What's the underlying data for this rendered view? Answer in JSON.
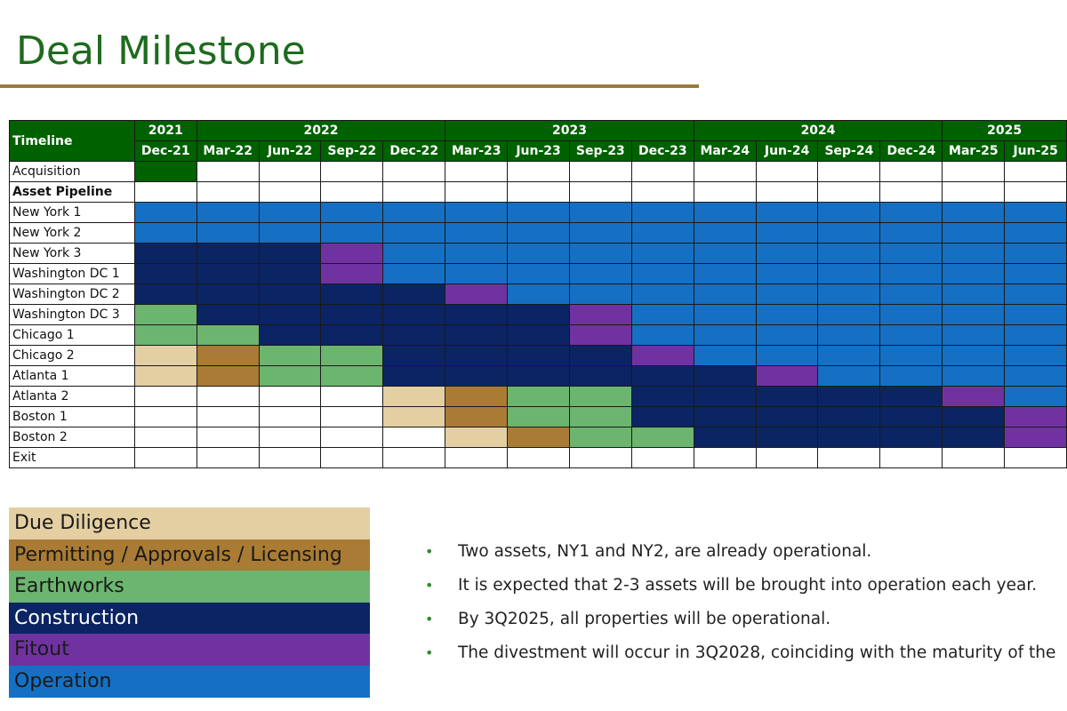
{
  "title": "Deal Milestone",
  "gantt": {
    "label_header": "Timeline",
    "years": [
      {
        "label": "2021",
        "span": 1
      },
      {
        "label": "2022",
        "span": 4
      },
      {
        "label": "2023",
        "span": 4
      },
      {
        "label": "2024",
        "span": 4
      },
      {
        "label": "2025",
        "span": 2
      }
    ],
    "periods": [
      "Dec-21",
      "Mar-22",
      "Jun-22",
      "Sep-22",
      "Dec-22",
      "Mar-23",
      "Jun-23",
      "Sep-23",
      "Dec-23",
      "Mar-24",
      "Jun-24",
      "Sep-24",
      "Dec-24",
      "Mar-25",
      "Jun-25"
    ],
    "phase_colors": {
      "A": "#006100",
      "D": "#e4cfa3",
      "P": "#a97b35",
      "E": "#6cb56f",
      "C": "#0b2463",
      "F": "#7032a0",
      "O": "#1570c4",
      "": "#ffffff"
    },
    "rows": [
      {
        "label": "Acquisition",
        "bold": false,
        "cells": [
          "A",
          "",
          "",
          "",
          "",
          "",
          "",
          "",
          "",
          "",
          "",
          "",
          "",
          "",
          ""
        ]
      },
      {
        "label": "Asset Pipeline",
        "bold": true,
        "cells": [
          "",
          "",
          "",
          "",
          "",
          "",
          "",
          "",
          "",
          "",
          "",
          "",
          "",
          "",
          ""
        ]
      },
      {
        "label": "New York 1",
        "bold": false,
        "cells": [
          "O",
          "O",
          "O",
          "O",
          "O",
          "O",
          "O",
          "O",
          "O",
          "O",
          "O",
          "O",
          "O",
          "O",
          "O"
        ]
      },
      {
        "label": "New York 2",
        "bold": false,
        "cells": [
          "O",
          "O",
          "O",
          "O",
          "O",
          "O",
          "O",
          "O",
          "O",
          "O",
          "O",
          "O",
          "O",
          "O",
          "O"
        ]
      },
      {
        "label": "New York 3",
        "bold": false,
        "cells": [
          "C",
          "C",
          "C",
          "F",
          "O",
          "O",
          "O",
          "O",
          "O",
          "O",
          "O",
          "O",
          "O",
          "O",
          "O"
        ]
      },
      {
        "label": "Washington DC 1",
        "bold": false,
        "cells": [
          "C",
          "C",
          "C",
          "F",
          "O",
          "O",
          "O",
          "O",
          "O",
          "O",
          "O",
          "O",
          "O",
          "O",
          "O"
        ]
      },
      {
        "label": "Washington DC 2",
        "bold": false,
        "cells": [
          "C",
          "C",
          "C",
          "C",
          "C",
          "F",
          "O",
          "O",
          "O",
          "O",
          "O",
          "O",
          "O",
          "O",
          "O"
        ]
      },
      {
        "label": "Washington DC 3",
        "bold": false,
        "cells": [
          "E",
          "C",
          "C",
          "C",
          "C",
          "C",
          "C",
          "F",
          "O",
          "O",
          "O",
          "O",
          "O",
          "O",
          "O"
        ]
      },
      {
        "label": "Chicago 1",
        "bold": false,
        "cells": [
          "E",
          "E",
          "C",
          "C",
          "C",
          "C",
          "C",
          "F",
          "O",
          "O",
          "O",
          "O",
          "O",
          "O",
          "O"
        ]
      },
      {
        "label": "Chicago 2",
        "bold": false,
        "cells": [
          "D",
          "P",
          "E",
          "E",
          "C",
          "C",
          "C",
          "C",
          "F",
          "O",
          "O",
          "O",
          "O",
          "O",
          "O"
        ]
      },
      {
        "label": "Atlanta 1",
        "bold": false,
        "cells": [
          "D",
          "P",
          "E",
          "E",
          "C",
          "C",
          "C",
          "C",
          "C",
          "C",
          "F",
          "O",
          "O",
          "O",
          "O"
        ]
      },
      {
        "label": "Atlanta 2",
        "bold": false,
        "cells": [
          "",
          "",
          "",
          "",
          "D",
          "P",
          "E",
          "E",
          "C",
          "C",
          "C",
          "C",
          "C",
          "F",
          "O"
        ]
      },
      {
        "label": "Boston 1",
        "bold": false,
        "cells": [
          "",
          "",
          "",
          "",
          "D",
          "P",
          "E",
          "E",
          "C",
          "C",
          "C",
          "C",
          "C",
          "C",
          "F"
        ]
      },
      {
        "label": "Boston 2",
        "bold": false,
        "cells": [
          "",
          "",
          "",
          "",
          "",
          "D",
          "P",
          "E",
          "E",
          "C",
          "C",
          "C",
          "C",
          "C",
          "F"
        ]
      },
      {
        "label": "Exit",
        "bold": false,
        "cells": [
          "",
          "",
          "",
          "",
          "",
          "",
          "",
          "",
          "",
          "",
          "",
          "",
          "",
          "",
          ""
        ]
      }
    ]
  },
  "legend": [
    {
      "label": "Due Diligence",
      "bg": "#e4cfa3",
      "fg": "#1a1a1a"
    },
    {
      "label": "Permitting / Approvals / Licensing",
      "bg": "#a97b35",
      "fg": "#1a1a1a"
    },
    {
      "label": "Earthworks",
      "bg": "#6cb56f",
      "fg": "#1a1a1a"
    },
    {
      "label": "Construction",
      "bg": "#0b2463",
      "fg": "#ffffff"
    },
    {
      "label": "Fitout",
      "bg": "#7032a0",
      "fg": "#1a1a1a"
    },
    {
      "label": "Operation",
      "bg": "#1570c4",
      "fg": "#1a1a1a"
    }
  ],
  "notes": [
    "Two assets, NY1 and NY2, are already operational.",
    "It is expected that 2-3 assets will be brought into operation each year.",
    "By 3Q2025, all properties will be operational.",
    "The divestment will occur in 3Q2028, coinciding with the maturity of the"
  ]
}
